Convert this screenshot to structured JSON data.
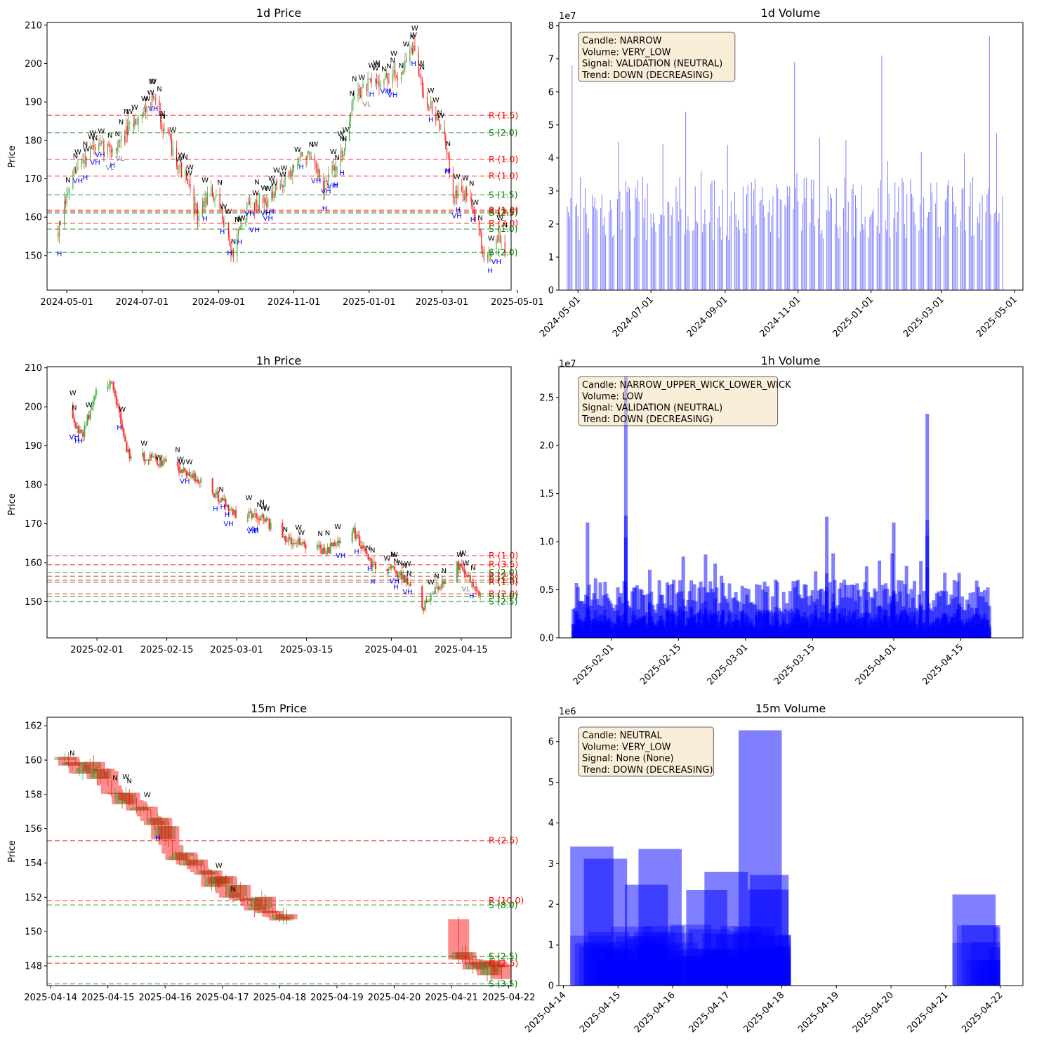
{
  "colors": {
    "up_candle": "#2ca02c",
    "down_candle": "#ff0000",
    "resistance": "#ff0000",
    "support": "#008000",
    "volume_bar": "#0000ff",
    "marker_high": "#0000ff",
    "marker_low": "#808080",
    "marker_wide": "#000000",
    "info_box_fill": "#f5deb3"
  },
  "chart_data": [
    {
      "id": "p1d",
      "type": "candlestick",
      "title": "1d Price",
      "ylabel": "Price",
      "xlim": [
        "2024-04-15",
        "2025-04-26"
      ],
      "ylim": [
        141,
        210.7
      ],
      "x_ticks": [
        "2024-05-01",
        "2024-07-01",
        "2024-09-01",
        "2024-11-01",
        "2025-01-01",
        "2025-03-01",
        "2025-05-01"
      ],
      "y_ticks": [
        150,
        160,
        170,
        180,
        190,
        200,
        210
      ],
      "y_tick_labels": [
        "150",
        "160",
        "170",
        "180",
        "190",
        "200",
        "210"
      ],
      "anchors": [
        [
          "2024-04-24",
          156
        ],
        [
          "2024-05-05",
          170
        ],
        [
          "2024-05-20",
          178
        ],
        [
          "2024-06-10",
          178
        ],
        [
          "2024-06-25",
          185
        ],
        [
          "2024-07-10",
          191
        ],
        [
          "2024-07-25",
          178
        ],
        [
          "2024-08-05",
          170
        ],
        [
          "2024-08-15",
          160
        ],
        [
          "2024-08-25",
          167
        ],
        [
          "2024-09-05",
          160
        ],
        [
          "2024-09-12",
          150
        ],
        [
          "2024-09-25",
          163
        ],
        [
          "2024-10-15",
          165
        ],
        [
          "2024-10-25",
          170
        ],
        [
          "2024-11-10",
          177
        ],
        [
          "2024-11-25",
          168
        ],
        [
          "2024-12-10",
          176
        ],
        [
          "2024-12-20",
          192
        ],
        [
          "2025-01-05",
          195
        ],
        [
          "2025-01-25",
          197
        ],
        [
          "2025-02-05",
          204
        ],
        [
          "2025-02-15",
          192
        ],
        [
          "2025-03-01",
          183
        ],
        [
          "2025-03-10",
          167
        ],
        [
          "2025-03-25",
          165
        ],
        [
          "2025-04-05",
          148
        ],
        [
          "2025-04-15",
          155
        ],
        [
          "2025-04-21",
          150
        ]
      ],
      "vol_levels": [
        2000000.0,
        6000000.0
      ],
      "hlines": [
        {
          "y": 186.5,
          "label": "R (1.5)",
          "kind": "R"
        },
        {
          "y": 182.0,
          "label": "S (2.0)",
          "kind": "S"
        },
        {
          "y": 175.0,
          "label": "R (1.0)",
          "kind": "R"
        },
        {
          "y": 170.7,
          "label": "R (1.0)",
          "kind": "R"
        },
        {
          "y": 165.8,
          "label": "S (1.5)",
          "kind": "S"
        },
        {
          "y": 161.8,
          "label": "R (1.0)",
          "kind": "R"
        },
        {
          "y": 161.4,
          "label": "R (3.5)",
          "kind": "R"
        },
        {
          "y": 161.1,
          "label": "S (2.5)",
          "kind": "S"
        },
        {
          "y": 158.4,
          "label": "R (2.0)",
          "kind": "R"
        },
        {
          "y": 156.9,
          "label": "S (1.0)",
          "kind": "S"
        },
        {
          "y": 150.8,
          "label": "S (2.0)",
          "kind": "S"
        }
      ]
    },
    {
      "id": "v1d",
      "type": "bar",
      "title": "1d Volume",
      "xlim": [
        "2024-04-15",
        "2025-05-08"
      ],
      "ylim": [
        0,
        81000000.0
      ],
      "y_ticks": [
        0,
        10000000.0,
        20000000.0,
        30000000.0,
        40000000.0,
        50000000.0,
        60000000.0,
        70000000.0,
        80000000.0
      ],
      "y_tick_labels": [
        "0",
        "1",
        "2",
        "3",
        "4",
        "5",
        "6",
        "7",
        "8"
      ],
      "offset_text": "1e7",
      "x_ticks": [
        "2024-05-01",
        "2024-07-01",
        "2024-09-01",
        "2024-11-01",
        "2025-01-01",
        "2025-03-01",
        "2025-05-01"
      ],
      "range": [
        "2024-04-22",
        "2025-04-21"
      ],
      "levels": [
        15000000.0,
        50000000.0
      ],
      "peaks": [
        [
          "2024-04-26",
          68000000.0
        ],
        [
          "2024-10-29",
          69000000.0
        ],
        [
          "2025-01-10",
          71000000.0
        ],
        [
          "2025-04-10",
          77000000.0
        ],
        [
          "2024-07-30",
          54000000.0
        ]
      ],
      "info": [
        "Candle: NARROW",
        "Volume: VERY_LOW",
        "Signal: VALIDATION (NEUTRAL)",
        "Trend: DOWN (DECREASING)"
      ]
    },
    {
      "id": "p1h",
      "type": "candlestick",
      "title": "1h Price",
      "ylabel": "Price",
      "xlim": [
        "2025-01-22",
        "2025-04-25"
      ],
      "ylim": [
        140.7,
        210.3
      ],
      "x_ticks": [
        "2025-02-01",
        "2025-02-15",
        "2025-03-01",
        "2025-03-15",
        "2025-04-01",
        "2025-04-15"
      ],
      "y_ticks": [
        150,
        160,
        170,
        180,
        190,
        200,
        210
      ],
      "y_tick_labels": [
        "150",
        "160",
        "170",
        "180",
        "190",
        "200",
        "210"
      ],
      "anchors": [
        [
          "2025-01-26",
          200
        ],
        [
          "2025-01-29",
          192
        ],
        [
          "2025-02-01",
          205
        ],
        [
          "2025-02-04",
          207
        ],
        [
          "2025-02-07",
          188
        ],
        [
          "2025-02-11",
          187
        ],
        [
          "2025-02-18",
          184
        ],
        [
          "2025-02-22",
          181
        ],
        [
          "2025-02-26",
          176
        ],
        [
          "2025-03-01",
          172
        ],
        [
          "2025-03-06",
          172
        ],
        [
          "2025-03-10",
          166
        ],
        [
          "2025-03-14",
          165
        ],
        [
          "2025-03-19",
          163
        ],
        [
          "2025-03-24",
          169
        ],
        [
          "2025-03-28",
          160
        ],
        [
          "2025-04-03",
          157
        ],
        [
          "2025-04-07",
          148
        ],
        [
          "2025-04-10",
          153
        ],
        [
          "2025-04-14",
          160
        ],
        [
          "2025-04-17",
          155
        ],
        [
          "2025-04-21",
          149
        ]
      ],
      "vol_levels": [
        2000000.0,
        6000000.0
      ],
      "hlines": [
        {
          "y": 161.8,
          "label": "R (1.0)",
          "kind": "R"
        },
        {
          "y": 159.5,
          "label": "R (3.5)",
          "kind": "R"
        },
        {
          "y": 157.5,
          "label": "S (2.0)",
          "kind": "S"
        },
        {
          "y": 156.5,
          "label": "R (2.5)",
          "kind": "R"
        },
        {
          "y": 155.5,
          "label": "S (1.5)",
          "kind": "S"
        },
        {
          "y": 155.0,
          "label": "R (1.0)",
          "kind": "R"
        },
        {
          "y": 152.0,
          "label": "R (2.0)",
          "kind": "R"
        },
        {
          "y": 151.3,
          "label": "S (1.0)",
          "kind": "S"
        },
        {
          "y": 150.0,
          "label": "S (2.5)",
          "kind": "S"
        }
      ]
    },
    {
      "id": "v1h",
      "type": "bar",
      "title": "1h Volume",
      "xlim": [
        "2025-01-21",
        "2025-04-28"
      ],
      "ylim": [
        0,
        28200000.0
      ],
      "y_ticks": [
        0,
        5000000.0,
        10000000.0,
        15000000.0,
        20000000.0,
        25000000.0
      ],
      "y_tick_labels": [
        "0.0",
        "0.5",
        "1.0",
        "1.5",
        "2.0",
        "2.5"
      ],
      "offset_text": "1e7",
      "x_ticks": [
        "2025-02-01",
        "2025-02-15",
        "2025-03-01",
        "2025-03-15",
        "2025-04-01",
        "2025-04-15"
      ],
      "range": [
        "2025-01-24",
        "2025-04-21"
      ],
      "levels": [
        2500000.0,
        9000000.0
      ],
      "peaks": [
        [
          "2025-02-04",
          27200000.0
        ],
        [
          "2025-04-08",
          23300000.0
        ],
        [
          "2025-01-27",
          12000000.0
        ],
        [
          "2025-03-18",
          12600000.0
        ],
        [
          "2025-04-01",
          12000000.0
        ]
      ],
      "info": [
        "Candle: NARROW_UPPER_WICK_LOWER_WICK",
        "Volume: LOW",
        "Signal: VALIDATION (NEUTRAL)",
        "Trend: DOWN (DECREASING)"
      ]
    },
    {
      "id": "p15",
      "type": "candlestick",
      "title": "15m Price",
      "ylabel": "Price",
      "xlim": [
        "2025-04-13 22:30",
        "2025-04-22 01:00"
      ],
      "ylim": [
        146.85,
        162.5
      ],
      "x_ticks": [
        "2025-04-14",
        "2025-04-15",
        "2025-04-16",
        "2025-04-17",
        "2025-04-18",
        "2025-04-19",
        "2025-04-20",
        "2025-04-21",
        "2025-04-22"
      ],
      "y_ticks": [
        148,
        150,
        152,
        154,
        156,
        158,
        160,
        162
      ],
      "y_tick_labels": [
        "148",
        "150",
        "152",
        "154",
        "156",
        "158",
        "160",
        "162"
      ],
      "anchors": [
        [
          "2025-04-14 06:00",
          160
        ],
        [
          "2025-04-14 18:00",
          159.5
        ],
        [
          "2025-04-15 09:00",
          157.5
        ],
        [
          "2025-04-15 22:00",
          156
        ],
        [
          "2025-04-16 08:00",
          154
        ],
        [
          "2025-04-16 20:00",
          153
        ],
        [
          "2025-04-17 10:00",
          152
        ],
        [
          "2025-04-17 20:00",
          151.2
        ],
        [
          "2025-04-21 14:00",
          148
        ],
        [
          "2025-04-21 22:00",
          147.5
        ]
      ],
      "vol_levels": [
        2000000.0,
        6000000.0
      ],
      "hlines": [
        {
          "y": 155.3,
          "label": "R (2.5)",
          "kind": "R"
        },
        {
          "y": 151.8,
          "label": "R (10.0)",
          "kind": "R"
        },
        {
          "y": 151.55,
          "label": "S (8.0)",
          "kind": "S"
        },
        {
          "y": 148.55,
          "label": "S (2.5)",
          "kind": "S"
        },
        {
          "y": 148.15,
          "label": "R (2.5)",
          "kind": "R"
        },
        {
          "y": 146.95,
          "label": "S (3.5)",
          "kind": "S"
        }
      ]
    },
    {
      "id": "v15",
      "type": "bar",
      "title": "15m Volume",
      "xlim": [
        "2025-04-13 22:00",
        "2025-04-22 10:00"
      ],
      "ylim": [
        0,
        6600000.0
      ],
      "y_ticks": [
        0,
        1000000.0,
        2000000.0,
        3000000.0,
        4000000.0,
        5000000.0,
        6000000.0
      ],
      "y_tick_labels": [
        "0",
        "1",
        "2",
        "3",
        "4",
        "5",
        "6"
      ],
      "offset_text": "1e6",
      "x_ticks": [
        "2025-04-14",
        "2025-04-15",
        "2025-04-16",
        "2025-04-17",
        "2025-04-18",
        "2025-04-19",
        "2025-04-20",
        "2025-04-21",
        "2025-04-22"
      ],
      "big_bars": [
        [
          "2025-04-14 03:00",
          "2025-04-14 22:00",
          3420000.0
        ],
        [
          "2025-04-14 09:00",
          "2025-04-15 04:00",
          3120000.0
        ],
        [
          "2025-04-15 03:00",
          "2025-04-15 22:00",
          2480000.0
        ],
        [
          "2025-04-15 09:00",
          "2025-04-16 04:00",
          3360000.0
        ],
        [
          "2025-04-16 06:00",
          "2025-04-17 00:00",
          2350000.0
        ],
        [
          "2025-04-16 14:00",
          "2025-04-17 09:00",
          2800000.0
        ],
        [
          "2025-04-17 05:00",
          "2025-04-18 00:00",
          6280000.0
        ],
        [
          "2025-04-17 09:00",
          "2025-04-18 03:00",
          2360000.0
        ],
        [
          "2025-04-17 10:00",
          "2025-04-18 03:00",
          2720000.0
        ],
        [
          "2025-04-21 03:00",
          "2025-04-21 22:00",
          2240000.0
        ]
      ],
      "clusters": [
        [
          "2025-04-14 03:00",
          "2025-04-18 04:00"
        ],
        [
          "2025-04-21 03:00",
          "2025-04-22 00:00"
        ]
      ],
      "info": [
        "Candle: NEUTRAL",
        "Volume: VERY_LOW",
        "Signal: None (None)",
        "Trend: DOWN (DECREASING)"
      ]
    }
  ]
}
